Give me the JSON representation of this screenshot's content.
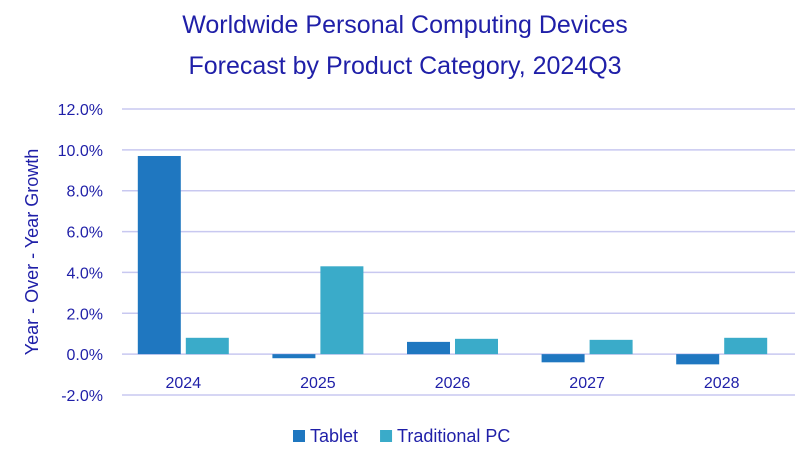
{
  "chart_data": {
    "type": "bar",
    "title": [
      "Worldwide Personal Computing Devices",
      "Forecast by Product Category, 2024Q3"
    ],
    "ylabel": "Year - Over - Year Growth",
    "xlabel": "",
    "categories": [
      "2024",
      "2025",
      "2026",
      "2027",
      "2028"
    ],
    "series": [
      {
        "name": "Tablet",
        "color": "#1f77c0",
        "values": [
          9.7,
          -0.2,
          0.6,
          -0.4,
          -0.5
        ]
      },
      {
        "name": "Traditional PC",
        "color": "#3aabc9",
        "values": [
          0.8,
          4.3,
          0.75,
          0.7,
          0.8
        ]
      }
    ],
    "ylim": [
      -2,
      12
    ],
    "yticks": [
      -2,
      0,
      2,
      4,
      6,
      8,
      10,
      12
    ],
    "ytick_labels": [
      "-2.0%",
      "0.0%",
      "2.0%",
      "4.0%",
      "6.0%",
      "8.0%",
      "10.0%",
      "12.0%"
    ],
    "grid": true,
    "legend": "bottom-center"
  }
}
